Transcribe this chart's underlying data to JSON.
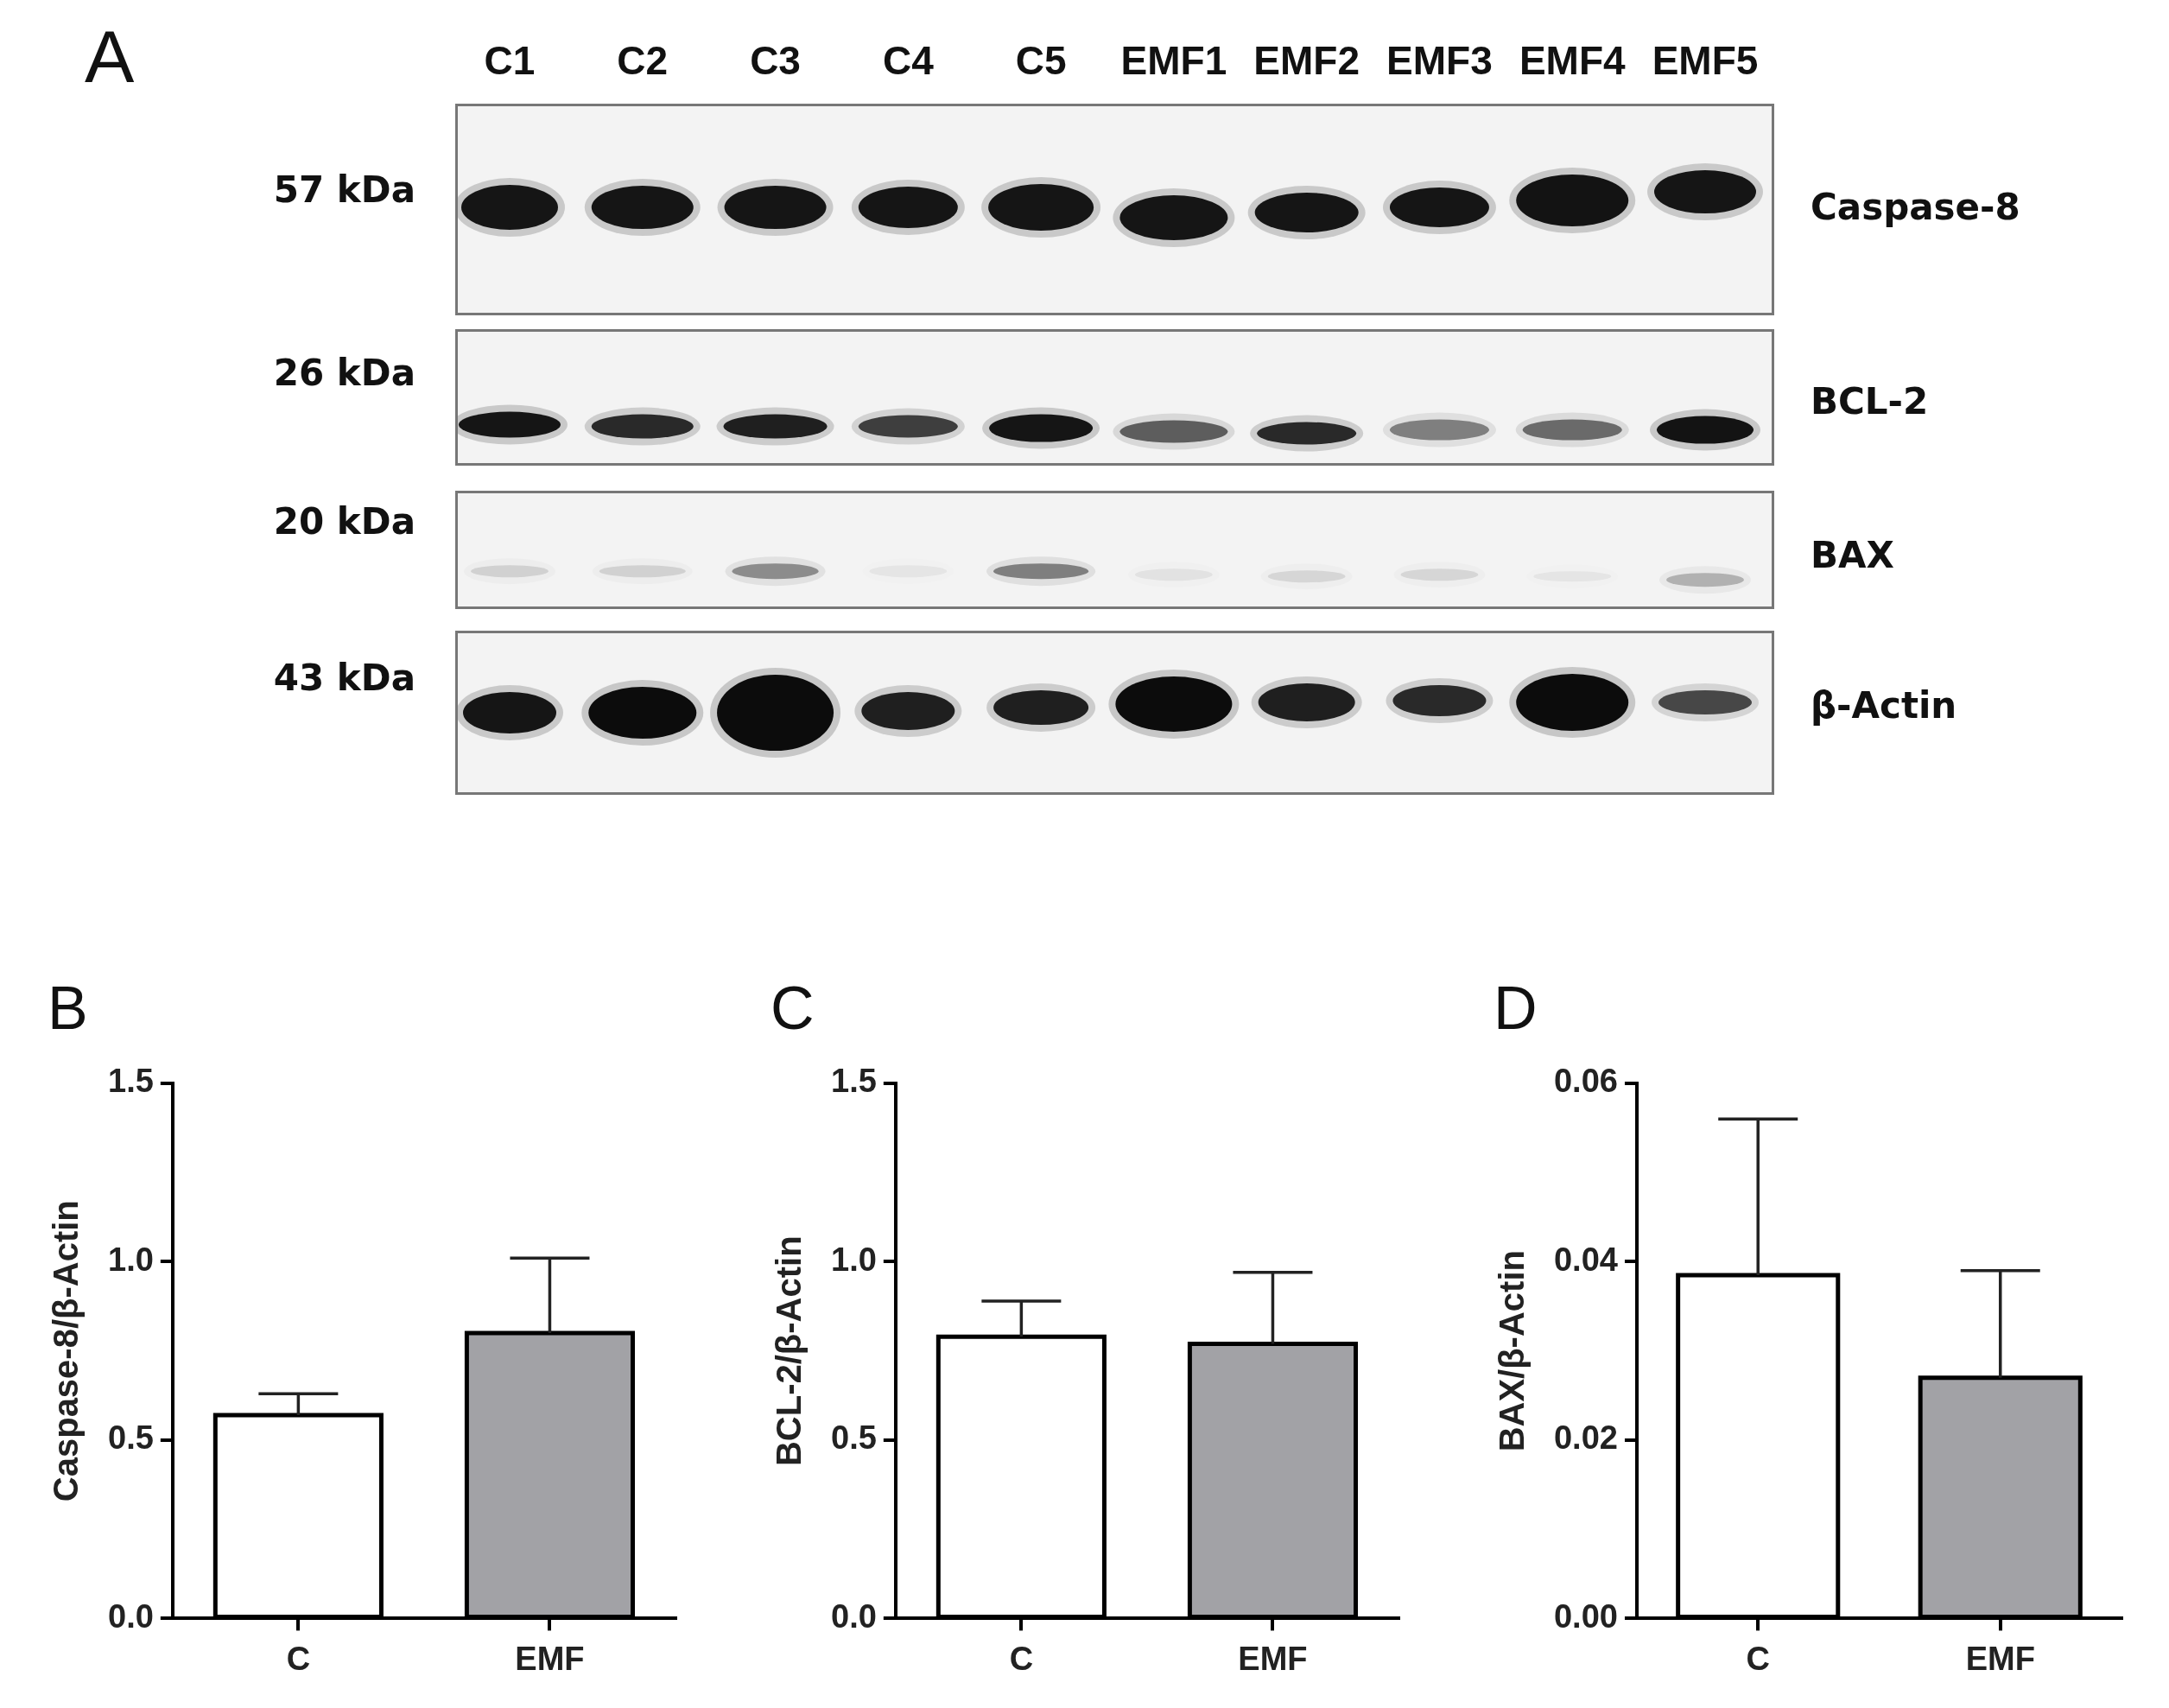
{
  "chart_data": [
    {
      "type": "other",
      "title": "A",
      "categories": [
        "C1",
        "C2",
        "C3",
        "C4",
        "C5",
        "EMF1",
        "EMF2",
        "EMF3",
        "EMF4",
        "EMF5"
      ],
      "y_categories": [
        "57 kDa",
        "26 kDa",
        "20 kDa",
        "43 kDa"
      ],
      "y2_categories": [
        "Caspase-8",
        "BCL-2",
        "BAX",
        "β-Actin"
      ]
    },
    {
      "type": "bar",
      "title": "B",
      "ylabel": "Caspase-8/β-Actin",
      "categories": [
        "C",
        "EMF"
      ],
      "values": [
        0.57,
        0.8
      ],
      "colors": [
        "#ffffff",
        "#a2a2a6"
      ],
      "errors": [
        [
          0.57,
          0.63
        ],
        [
          0.8,
          1.01
        ]
      ],
      "ylim": [
        0,
        1.5
      ],
      "yticks": [
        {
          "value": 0,
          "label": "0.0"
        },
        {
          "value": 0.5,
          "label": "0.5"
        },
        {
          "value": 1,
          "label": "1.0"
        },
        {
          "value": 1.5,
          "label": "1.5"
        }
      ]
    },
    {
      "type": "bar",
      "title": "C",
      "ylabel": "BCL-2/β-Actin",
      "categories": [
        "C",
        "EMF"
      ],
      "values": [
        0.79,
        0.77
      ],
      "colors": [
        "#ffffff",
        "#a2a2a6"
      ],
      "errors": [
        [
          0.79,
          0.89
        ],
        [
          0.77,
          0.97
        ]
      ],
      "ylim": [
        0,
        1.5
      ],
      "yticks": [
        {
          "value": 0,
          "label": "0.0"
        },
        {
          "value": 0.5,
          "label": "0.5"
        },
        {
          "value": 1,
          "label": "1.0"
        },
        {
          "value": 1.5,
          "label": "1.5"
        }
      ]
    },
    {
      "type": "bar",
      "title": "D",
      "ylabel": "BAX/β-Actin",
      "categories": [
        "C",
        "EMF"
      ],
      "values": [
        0.0385,
        0.027
      ],
      "colors": [
        "#ffffff",
        "#a2a2a6"
      ],
      "errors": [
        [
          0.0385,
          0.056
        ],
        [
          0.027,
          0.039
        ]
      ],
      "ylim": [
        0,
        0.06
      ],
      "yticks": [
        {
          "value": 0,
          "label": "0.00"
        },
        {
          "value": 0.02,
          "label": "0.02"
        },
        {
          "value": 0.04,
          "label": "0.04"
        },
        {
          "value": 0.06,
          "label": "0.06"
        }
      ]
    }
  ]
}
